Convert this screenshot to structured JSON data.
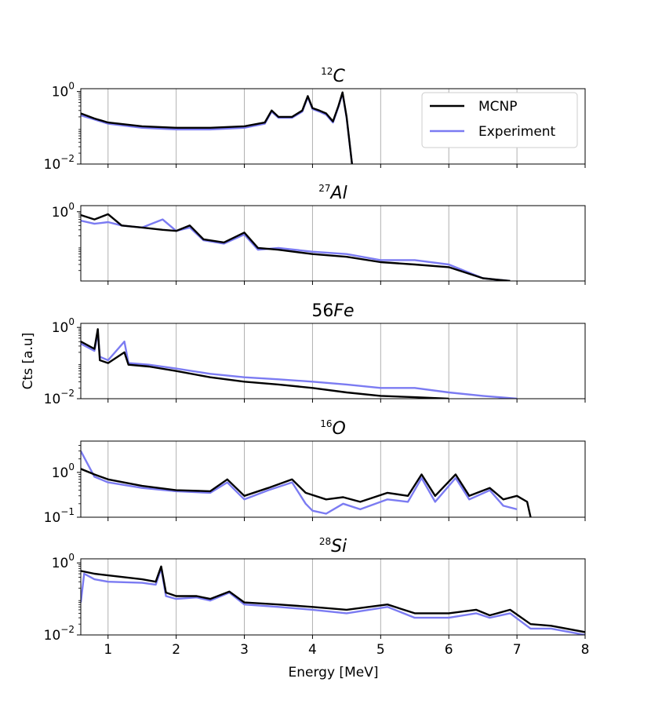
{
  "chart_data": {
    "type": "line",
    "xlabel": "Energy [MeV]",
    "ylabel": "Cts [a.u]",
    "xlim": [
      0.6,
      8
    ],
    "x_ticks": [
      1,
      2,
      3,
      4,
      5,
      6,
      7,
      8
    ],
    "x_tick_labels": [
      "1",
      "2",
      "3",
      "4",
      "5",
      "6",
      "7",
      "8"
    ],
    "grid": "vertical",
    "legend": {
      "location": "top-right of first panel",
      "entries": [
        "MCNP",
        "Experiment"
      ]
    },
    "series_colors": {
      "MCNP": "#000000",
      "Experiment": "#7b7bf2"
    },
    "panels": [
      {
        "title_sup": "12",
        "title_main": "C",
        "yscale": "log",
        "ylim": [
          0.01,
          1.2
        ],
        "y_ticks": [
          {
            "value": 1,
            "base": "10",
            "exp": "0"
          },
          {
            "value": 0.01,
            "base": "10",
            "exp": "−2"
          }
        ],
        "series": [
          {
            "name": "MCNP",
            "x": [
              0.6,
              0.8,
              1.0,
              1.5,
              2.0,
              2.5,
              3.0,
              3.3,
              3.4,
              3.5,
              3.7,
              3.85,
              3.93,
              4.0,
              4.1,
              4.2,
              4.3,
              4.38,
              4.44,
              4.5,
              4.58
            ],
            "y": [
              0.25,
              0.18,
              0.14,
              0.11,
              0.1,
              0.1,
              0.11,
              0.14,
              0.3,
              0.2,
              0.2,
              0.3,
              0.75,
              0.35,
              0.3,
              0.25,
              0.15,
              0.4,
              0.95,
              0.2,
              0.01
            ]
          },
          {
            "name": "Experiment",
            "x": [
              0.6,
              0.8,
              1.0,
              1.5,
              2.0,
              2.5,
              3.0,
              3.3,
              3.4,
              3.5,
              3.7,
              3.85,
              3.93,
              4.0,
              4.1,
              4.2,
              4.3,
              4.38,
              4.44,
              4.5,
              4.58
            ],
            "y": [
              0.22,
              0.17,
              0.13,
              0.1,
              0.09,
              0.09,
              0.1,
              0.13,
              0.28,
              0.19,
              0.19,
              0.28,
              0.7,
              0.33,
              0.28,
              0.23,
              0.14,
              0.38,
              0.9,
              0.19,
              0.01
            ]
          }
        ]
      },
      {
        "title_sup": "27",
        "title_main": "Al",
        "yscale": "log",
        "ylim": [
          0.01,
          1.5
        ],
        "y_ticks": [
          {
            "value": 1,
            "base": "10",
            "exp": "0"
          }
        ],
        "series": [
          {
            "name": "MCNP",
            "x": [
              0.6,
              0.8,
              1.0,
              1.2,
              1.5,
              1.8,
              2.0,
              2.2,
              2.4,
              2.7,
              3.0,
              3.2,
              3.5,
              4.0,
              4.5,
              5.0,
              5.5,
              6.0,
              6.5,
              6.9
            ],
            "y": [
              0.8,
              0.6,
              0.85,
              0.4,
              0.35,
              0.3,
              0.28,
              0.4,
              0.16,
              0.13,
              0.25,
              0.09,
              0.08,
              0.06,
              0.05,
              0.035,
              0.03,
              0.025,
              0.012,
              0.01
            ]
          },
          {
            "name": "Experiment",
            "x": [
              0.6,
              0.8,
              1.0,
              1.2,
              1.5,
              1.8,
              2.0,
              2.2,
              2.4,
              2.7,
              3.0,
              3.2,
              3.5,
              4.0,
              4.5,
              5.0,
              5.5,
              6.0,
              6.5,
              6.9
            ],
            "y": [
              0.55,
              0.45,
              0.5,
              0.4,
              0.35,
              0.6,
              0.28,
              0.35,
              0.15,
              0.12,
              0.22,
              0.08,
              0.09,
              0.07,
              0.06,
              0.04,
              0.04,
              0.03,
              0.012,
              0.01
            ]
          }
        ]
      },
      {
        "title_sup": "",
        "title_main": "56Fe",
        "yscale": "log",
        "ylim": [
          0.01,
          1.3
        ],
        "y_ticks": [
          {
            "value": 1,
            "base": "10",
            "exp": "0"
          },
          {
            "value": 0.01,
            "base": "10",
            "exp": "−2"
          }
        ],
        "series": [
          {
            "name": "MCNP",
            "x": [
              0.6,
              0.8,
              0.85,
              0.88,
              1.0,
              1.24,
              1.3,
              1.6,
              2.0,
              2.5,
              3.0,
              3.5,
              4.0,
              4.5,
              5.0,
              5.5,
              6.0
            ],
            "y": [
              0.4,
              0.25,
              0.9,
              0.12,
              0.1,
              0.2,
              0.09,
              0.08,
              0.06,
              0.04,
              0.03,
              0.025,
              0.02,
              0.015,
              0.012,
              0.011,
              0.01
            ]
          },
          {
            "name": "Experiment",
            "x": [
              0.6,
              0.8,
              0.85,
              0.88,
              1.0,
              1.24,
              1.3,
              1.6,
              2.0,
              2.5,
              3.0,
              3.5,
              4.0,
              4.5,
              5.0,
              5.5,
              6.0,
              6.5,
              7.0
            ],
            "y": [
              0.35,
              0.22,
              0.7,
              0.15,
              0.12,
              0.4,
              0.1,
              0.09,
              0.07,
              0.05,
              0.04,
              0.035,
              0.03,
              0.025,
              0.02,
              0.02,
              0.015,
              0.012,
              0.01
            ]
          }
        ]
      },
      {
        "title_sup": "16",
        "title_main": "O",
        "yscale": "log",
        "ylim": [
          0.1,
          5
        ],
        "y_ticks": [
          {
            "value": 1,
            "base": "10",
            "exp": "0"
          },
          {
            "value": 0.1,
            "base": "10",
            "exp": "−1"
          }
        ],
        "series": [
          {
            "name": "MCNP",
            "x": [
              0.6,
              0.8,
              1.0,
              1.5,
              2.0,
              2.5,
              2.75,
              3.0,
              3.35,
              3.7,
              3.9,
              4.2,
              4.45,
              4.7,
              5.1,
              5.4,
              5.6,
              5.8,
              6.1,
              6.3,
              6.6,
              6.8,
              7.0,
              7.15,
              7.2
            ],
            "y": [
              1.2,
              0.9,
              0.7,
              0.5,
              0.4,
              0.38,
              0.7,
              0.3,
              0.45,
              0.7,
              0.35,
              0.25,
              0.28,
              0.22,
              0.35,
              0.3,
              0.9,
              0.3,
              0.9,
              0.3,
              0.45,
              0.25,
              0.3,
              0.22,
              0.1
            ]
          },
          {
            "name": "Experiment",
            "x": [
              0.6,
              0.8,
              1.0,
              1.5,
              2.0,
              2.5,
              2.75,
              3.0,
              3.35,
              3.7,
              3.9,
              4.0,
              4.2,
              4.45,
              4.7,
              5.1,
              5.4,
              5.6,
              5.8,
              6.1,
              6.3,
              6.6,
              6.8,
              7.0
            ],
            "y": [
              3.0,
              0.8,
              0.6,
              0.45,
              0.38,
              0.35,
              0.6,
              0.25,
              0.4,
              0.6,
              0.2,
              0.14,
              0.12,
              0.2,
              0.15,
              0.25,
              0.22,
              0.75,
              0.22,
              0.75,
              0.25,
              0.4,
              0.18,
              0.15
            ]
          }
        ]
      },
      {
        "title_sup": "28",
        "title_main": "Si",
        "yscale": "log",
        "ylim": [
          0.01,
          1.3
        ],
        "y_ticks": [
          {
            "value": 1,
            "base": "10",
            "exp": "0"
          },
          {
            "value": 0.01,
            "base": "10",
            "exp": "−2"
          }
        ],
        "series": [
          {
            "name": "MCNP",
            "x": [
              0.6,
              0.8,
              1.0,
              1.5,
              1.7,
              1.78,
              1.85,
              2.0,
              2.3,
              2.5,
              2.78,
              3.0,
              3.5,
              4.0,
              4.5,
              5.1,
              5.5,
              6.0,
              6.4,
              6.6,
              6.9,
              7.2,
              7.5,
              8.0
            ],
            "y": [
              0.6,
              0.5,
              0.45,
              0.35,
              0.3,
              0.8,
              0.15,
              0.12,
              0.12,
              0.1,
              0.16,
              0.08,
              0.07,
              0.06,
              0.05,
              0.07,
              0.04,
              0.04,
              0.05,
              0.035,
              0.05,
              0.02,
              0.018,
              0.012
            ]
          },
          {
            "name": "Experiment",
            "x": [
              0.6,
              0.65,
              0.8,
              1.0,
              1.5,
              1.7,
              1.78,
              1.85,
              2.0,
              2.3,
              2.5,
              2.78,
              3.0,
              3.5,
              4.0,
              4.5,
              5.1,
              5.5,
              6.0,
              6.4,
              6.6,
              6.9,
              7.2,
              7.5,
              8.0
            ],
            "y": [
              0.08,
              0.5,
              0.35,
              0.3,
              0.28,
              0.25,
              0.7,
              0.12,
              0.1,
              0.11,
              0.09,
              0.15,
              0.07,
              0.06,
              0.05,
              0.04,
              0.06,
              0.03,
              0.03,
              0.04,
              0.03,
              0.04,
              0.015,
              0.015,
              0.01
            ]
          }
        ]
      }
    ]
  }
}
